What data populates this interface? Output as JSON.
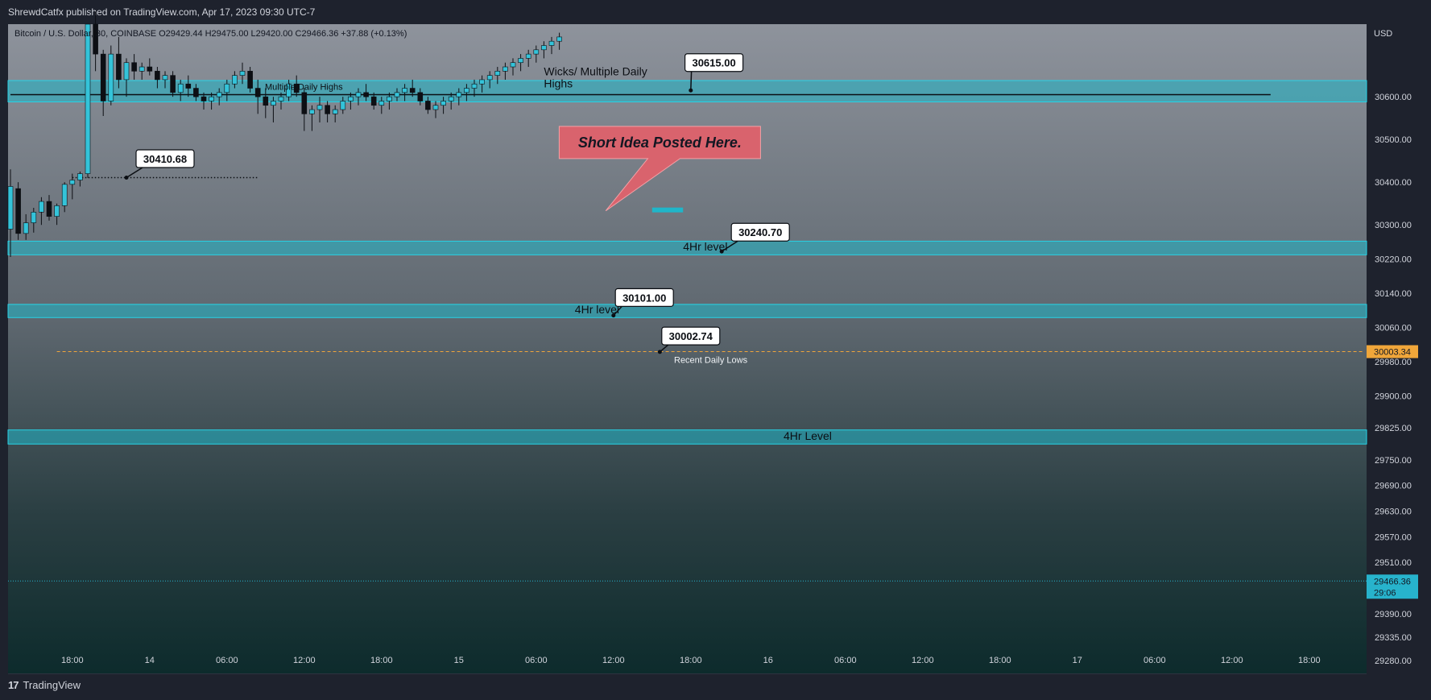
{
  "publish_line": "ShrewdCatfx published on TradingView.com, Apr 17, 2023 09:30 UTC-7",
  "footer": {
    "logo_text": "TradingView",
    "logo_mark": "17"
  },
  "colors": {
    "background_top": "#8e939c",
    "background_bottom": "#0d2b2c",
    "zone_fill": "#1fb6c9",
    "zone_border": "#27d3e6",
    "candle_up": "#34c3d9",
    "candle_down": "#0d0f14",
    "current_price": "#27b3cc",
    "recent_low_line": "#f0a63a",
    "callout": "#d9636d"
  },
  "chart_data": {
    "type": "candlestick",
    "symbol_header": "Bitcoin / U.S. Dollar, 30, COINBASE  O29429.44  H29475.00  L29420.00  C29466.36  +37.88 (+0.13%)",
    "currency": "USD",
    "ylim": [
      29250,
      30770
    ],
    "y_ticks": [
      30600,
      30500,
      30400,
      30300,
      30220,
      30140,
      30060,
      29980,
      29900,
      29825,
      29750,
      29690,
      29630,
      29570,
      29510,
      29450,
      29390,
      29335,
      29280
    ],
    "x_ticks": [
      "18:00",
      "14",
      "06:00",
      "12:00",
      "18:00",
      "15",
      "06:00",
      "12:00",
      "18:00",
      "16",
      "06:00",
      "12:00",
      "18:00",
      "17",
      "06:00",
      "12:00",
      "18:00"
    ],
    "x_tick_index": [
      8,
      18,
      28,
      38,
      48,
      58,
      68,
      78,
      88,
      98,
      108,
      118,
      128,
      138,
      148,
      158,
      168
    ],
    "price_badges": [
      {
        "label": "30003.34",
        "value": 30003.34,
        "kind": "recent-low"
      },
      {
        "label": "29466.36",
        "sub": "29:06",
        "value": 29466.36,
        "kind": "current"
      }
    ],
    "zones": [
      {
        "name": "Wicks/ Multiple Daily Highs",
        "from": 30588,
        "to": 30638,
        "start": 0
      },
      {
        "name": "4Hr level",
        "from": 30230,
        "to": 30262,
        "start": 0
      },
      {
        "name": "4Hr level",
        "from": 30083,
        "to": 30114,
        "start": 0
      },
      {
        "name": "4Hr Level",
        "from": 29787,
        "to": 29820,
        "start": 0
      }
    ],
    "lines": [
      {
        "name": "multiple-daily-highs",
        "value": 30605,
        "start": 0,
        "end": 163,
        "style": "solid",
        "label": "Multiple Daily Highs"
      },
      {
        "name": "30410",
        "value": 30410.68,
        "start": 8,
        "end": 32,
        "style": "dotted"
      },
      {
        "name": "recent-daily-lows",
        "value": 30003.34,
        "start": 6,
        "end": 175,
        "style": "dashed",
        "label": "Recent Daily Lows"
      }
    ],
    "zone_labels": [
      {
        "text": "Wicks/ Multiple Daily",
        "text2": "Highs",
        "x_index": 69,
        "value": 30650
      },
      {
        "text": "4Hr level",
        "x_index": 87,
        "value": 30240
      },
      {
        "text": "4Hr level",
        "x_index": 73,
        "value": 30093
      },
      {
        "text": "4Hr Level",
        "x_index": 100,
        "value": 29797
      }
    ],
    "price_labels": [
      {
        "text": "30615.00",
        "anchor_index": 88,
        "anchor_value": 30615,
        "box_index": 91,
        "box_value": 30680
      },
      {
        "text": "30410.68",
        "anchor_index": 15,
        "anchor_value": 30410.68,
        "box_index": 20,
        "box_value": 30455
      },
      {
        "text": "30240.70",
        "anchor_index": 92,
        "anchor_value": 30238,
        "box_index": 97,
        "box_value": 30283
      },
      {
        "text": "30101.00",
        "anchor_index": 78,
        "anchor_value": 30088,
        "box_index": 82,
        "box_value": 30130
      },
      {
        "text": "30002.74",
        "anchor_index": 84,
        "anchor_value": 30002.74,
        "box_index": 88,
        "box_value": 30040
      }
    ],
    "callout": {
      "text": "Short Idea Posted Here.",
      "box_index": 84,
      "box_value": 30493,
      "tip_index": 77,
      "tip_value": 30333
    },
    "short_marker": {
      "value": 30335,
      "from": 83,
      "to": 87
    },
    "candles": [
      {
        "o": 30290,
        "h": 30430,
        "l": 30225,
        "c": 30390
      },
      {
        "o": 30385,
        "h": 30400,
        "l": 30265,
        "c": 30280
      },
      {
        "o": 30280,
        "h": 30325,
        "l": 30265,
        "c": 30305
      },
      {
        "o": 30305,
        "h": 30340,
        "l": 30282,
        "c": 30330
      },
      {
        "o": 30330,
        "h": 30365,
        "l": 30300,
        "c": 30355
      },
      {
        "o": 30355,
        "h": 30370,
        "l": 30310,
        "c": 30320
      },
      {
        "o": 30320,
        "h": 30350,
        "l": 30300,
        "c": 30345
      },
      {
        "o": 30345,
        "h": 30400,
        "l": 30330,
        "c": 30395
      },
      {
        "o": 30395,
        "h": 30420,
        "l": 30360,
        "c": 30405
      },
      {
        "o": 30405,
        "h": 30425,
        "l": 30390,
        "c": 30420
      },
      {
        "o": 30420,
        "h": 30770,
        "l": 30410,
        "c": 30770
      },
      {
        "o": 30770,
        "h": 30800,
        "l": 30660,
        "c": 30700
      },
      {
        "o": 30700,
        "h": 30710,
        "l": 30555,
        "c": 30590
      },
      {
        "o": 30590,
        "h": 30720,
        "l": 30580,
        "c": 30700
      },
      {
        "o": 30700,
        "h": 30740,
        "l": 30620,
        "c": 30640
      },
      {
        "o": 30640,
        "h": 30690,
        "l": 30600,
        "c": 30680
      },
      {
        "o": 30680,
        "h": 30700,
        "l": 30640,
        "c": 30660
      },
      {
        "o": 30660,
        "h": 30680,
        "l": 30640,
        "c": 30670
      },
      {
        "o": 30670,
        "h": 30690,
        "l": 30650,
        "c": 30660
      },
      {
        "o": 30660,
        "h": 30670,
        "l": 30620,
        "c": 30640
      },
      {
        "o": 30640,
        "h": 30660,
        "l": 30620,
        "c": 30650
      },
      {
        "o": 30650,
        "h": 30660,
        "l": 30600,
        "c": 30610
      },
      {
        "o": 30610,
        "h": 30640,
        "l": 30590,
        "c": 30630
      },
      {
        "o": 30630,
        "h": 30650,
        "l": 30600,
        "c": 30620
      },
      {
        "o": 30620,
        "h": 30630,
        "l": 30590,
        "c": 30600
      },
      {
        "o": 30600,
        "h": 30610,
        "l": 30570,
        "c": 30590
      },
      {
        "o": 30590,
        "h": 30610,
        "l": 30570,
        "c": 30600
      },
      {
        "o": 30600,
        "h": 30620,
        "l": 30580,
        "c": 30610
      },
      {
        "o": 30610,
        "h": 30640,
        "l": 30590,
        "c": 30630
      },
      {
        "o": 30630,
        "h": 30660,
        "l": 30620,
        "c": 30650
      },
      {
        "o": 30650,
        "h": 30680,
        "l": 30630,
        "c": 30660
      },
      {
        "o": 30660,
        "h": 30670,
        "l": 30610,
        "c": 30620
      },
      {
        "o": 30620,
        "h": 30640,
        "l": 30560,
        "c": 30600
      },
      {
        "o": 30600,
        "h": 30620,
        "l": 30550,
        "c": 30580
      },
      {
        "o": 30580,
        "h": 30600,
        "l": 30540,
        "c": 30590
      },
      {
        "o": 30590,
        "h": 30610,
        "l": 30570,
        "c": 30600
      },
      {
        "o": 30600,
        "h": 30640,
        "l": 30590,
        "c": 30630
      },
      {
        "o": 30630,
        "h": 30650,
        "l": 30600,
        "c": 30610
      },
      {
        "o": 30610,
        "h": 30620,
        "l": 30520,
        "c": 30560
      },
      {
        "o": 30560,
        "h": 30580,
        "l": 30520,
        "c": 30570
      },
      {
        "o": 30570,
        "h": 30600,
        "l": 30540,
        "c": 30580
      },
      {
        "o": 30580,
        "h": 30590,
        "l": 30540,
        "c": 30560
      },
      {
        "o": 30560,
        "h": 30580,
        "l": 30540,
        "c": 30570
      },
      {
        "o": 30570,
        "h": 30600,
        "l": 30560,
        "c": 30590
      },
      {
        "o": 30590,
        "h": 30610,
        "l": 30570,
        "c": 30600
      },
      {
        "o": 30600,
        "h": 30620,
        "l": 30580,
        "c": 30610
      },
      {
        "o": 30610,
        "h": 30630,
        "l": 30590,
        "c": 30600
      },
      {
        "o": 30600,
        "h": 30610,
        "l": 30570,
        "c": 30580
      },
      {
        "o": 30580,
        "h": 30600,
        "l": 30560,
        "c": 30590
      },
      {
        "o": 30590,
        "h": 30610,
        "l": 30570,
        "c": 30600
      },
      {
        "o": 30600,
        "h": 30620,
        "l": 30590,
        "c": 30610
      },
      {
        "o": 30610,
        "h": 30630,
        "l": 30590,
        "c": 30620
      },
      {
        "o": 30620,
        "h": 30640,
        "l": 30600,
        "c": 30610
      },
      {
        "o": 30610,
        "h": 30620,
        "l": 30580,
        "c": 30590
      },
      {
        "o": 30590,
        "h": 30600,
        "l": 30560,
        "c": 30570
      },
      {
        "o": 30570,
        "h": 30590,
        "l": 30550,
        "c": 30580
      },
      {
        "o": 30580,
        "h": 30600,
        "l": 30560,
        "c": 30590
      },
      {
        "o": 30590,
        "h": 30610,
        "l": 30570,
        "c": 30600
      },
      {
        "o": 30600,
        "h": 30620,
        "l": 30580,
        "c": 30610
      },
      {
        "o": 30610,
        "h": 30630,
        "l": 30590,
        "c": 30620
      },
      {
        "o": 30620,
        "h": 30640,
        "l": 30600,
        "c": 30630
      },
      {
        "o": 30630,
        "h": 30650,
        "l": 30610,
        "c": 30640
      },
      {
        "o": 30640,
        "h": 30660,
        "l": 30620,
        "c": 30650
      },
      {
        "o": 30650,
        "h": 30670,
        "l": 30630,
        "c": 30660
      },
      {
        "o": 30660,
        "h": 30680,
        "l": 30640,
        "c": 30670
      },
      {
        "o": 30670,
        "h": 30690,
        "l": 30650,
        "c": 30680
      },
      {
        "o": 30680,
        "h": 30700,
        "l": 30660,
        "c": 30690
      },
      {
        "o": 30690,
        "h": 30710,
        "l": 30670,
        "c": 30700
      },
      {
        "o": 30700,
        "h": 30720,
        "l": 30680,
        "c": 30710
      },
      {
        "o": 30710,
        "h": 30730,
        "l": 30690,
        "c": 30720
      },
      {
        "o": 30720,
        "h": 30740,
        "l": 30700,
        "c": 30730
      },
      {
        "o": 30730,
        "h": 30750,
        "l": 30710,
        "c": 30740
      }
    ]
  }
}
